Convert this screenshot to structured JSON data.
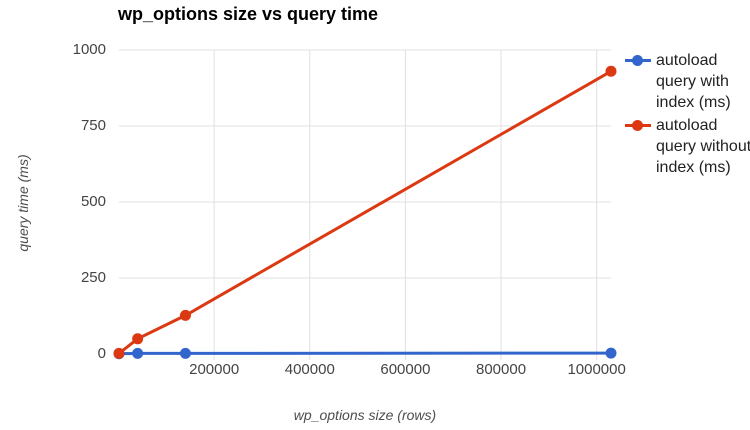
{
  "chart_data": {
    "type": "line",
    "title": "wp_options size vs query time",
    "xlabel": "wp_options size (rows)",
    "ylabel": "query time (ms)",
    "x": [
      1000,
      40000,
      140000,
      1030000
    ],
    "series": [
      {
        "name": "autoload query with index (ms)",
        "color": "#3366cc",
        "values": [
          1,
          2,
          2,
          3
        ]
      },
      {
        "name": "autoload query without index (ms)",
        "color": "#dc3912",
        "values": [
          2,
          50,
          127,
          930
        ]
      }
    ],
    "x_ticks": [
      200000,
      400000,
      600000,
      800000,
      1000000
    ],
    "x_tick_labels": [
      "200000",
      "400000",
      "600000",
      "800000",
      "1000000"
    ],
    "y_ticks": [
      0,
      250,
      500,
      750,
      1000
    ],
    "y_tick_labels": [
      "0",
      "250",
      "500",
      "750",
      "1000"
    ],
    "xlim": [
      1000,
      1030000
    ],
    "ylim": [
      0,
      1000
    ],
    "grid": true,
    "legend_position": "right",
    "grid_color": "#e0e0e0",
    "tick_label_color": "#444444",
    "background_color": "#ffffff"
  }
}
